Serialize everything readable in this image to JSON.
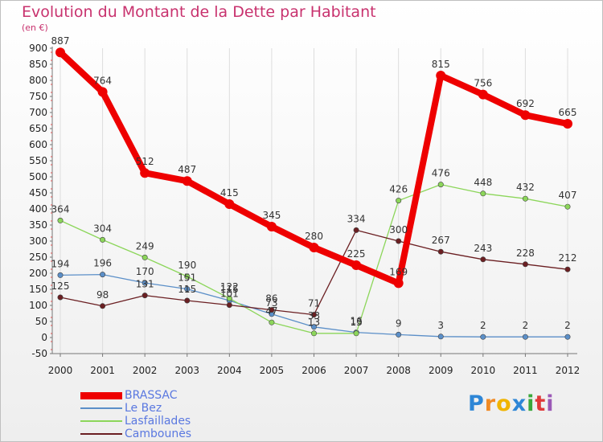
{
  "header": {
    "title": "Evolution du Montant de la Dette par Habitant",
    "unit": "(en €)"
  },
  "logo": {
    "text": "Proxiti"
  },
  "chart_data": {
    "type": "line",
    "title": "Evolution du Montant de la Dette par Habitant",
    "ylabel": "(en €)",
    "x": [
      "2000",
      "2001",
      "2002",
      "2003",
      "2004",
      "2005",
      "2006",
      "2007",
      "2008",
      "2009",
      "2010",
      "2011",
      "2012"
    ],
    "yticks": [
      -50,
      0,
      50,
      100,
      150,
      200,
      250,
      300,
      350,
      400,
      450,
      500,
      550,
      600,
      650,
      700,
      750,
      800,
      850,
      900
    ],
    "ylim": [
      -50,
      900
    ],
    "grid": "vertical",
    "legend": "bottom-left",
    "series": [
      {
        "name": "BRASSAC",
        "color": "#ee0000",
        "values": [
          887,
          764,
          512,
          487,
          415,
          345,
          280,
          225,
          169,
          815,
          756,
          692,
          665
        ]
      },
      {
        "name": "Le Bez",
        "color": "#5b8fc8",
        "values": [
          194,
          196,
          170,
          151,
          115,
          73,
          33,
          16,
          9,
          3,
          2,
          2,
          2
        ]
      },
      {
        "name": "Lasfaillades",
        "color": "#8cd65a",
        "values": [
          364,
          304,
          249,
          190,
          122,
          47,
          13,
          13,
          426,
          476,
          448,
          432,
          407
        ]
      },
      {
        "name": "Cambounès",
        "color": "#6b1f22",
        "values": [
          125,
          98,
          131,
          115,
          101,
          86,
          71,
          334,
          300,
          267,
          243,
          228,
          212
        ]
      }
    ]
  }
}
